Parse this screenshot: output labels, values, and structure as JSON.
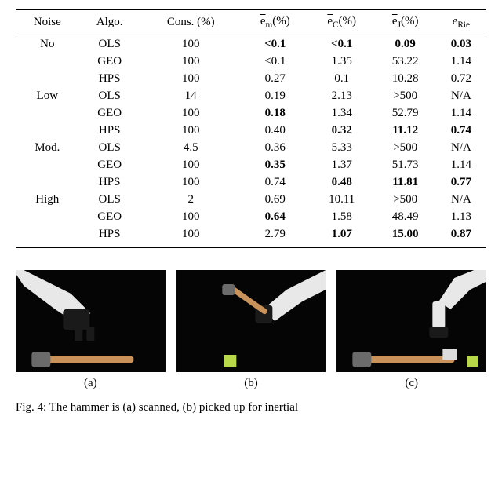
{
  "table": {
    "headers": {
      "noise": "Noise",
      "algo": "Algo.",
      "cons": "Cons. (%)",
      "em_bar": "e",
      "em_sub": "m",
      "em_tail": "(%)",
      "ec_bar": "e",
      "ec_sub": "C",
      "ec_tail": "(%)",
      "ej_bar": "e",
      "ej_sub": "J",
      "ej_tail": "(%)",
      "er_main": "e",
      "er_sub": "Rie"
    },
    "groups": [
      {
        "noise": "No",
        "rows": [
          {
            "algo": "OLS",
            "cons": "100",
            "em": "<0.1",
            "em_b": true,
            "ec": "<0.1",
            "ec_b": true,
            "ej": "0.09",
            "ej_b": true,
            "er": "0.03",
            "er_b": true
          },
          {
            "algo": "GEO",
            "cons": "100",
            "em": "<0.1",
            "em_b": false,
            "ec": "1.35",
            "ec_b": false,
            "ej": "53.22",
            "ej_b": false,
            "er": "1.14",
            "er_b": false
          },
          {
            "algo": "HPS",
            "cons": "100",
            "em": "0.27",
            "em_b": false,
            "ec": "0.1",
            "ec_b": false,
            "ej": "10.28",
            "ej_b": false,
            "er": "0.72",
            "er_b": false
          }
        ]
      },
      {
        "noise": "Low",
        "rows": [
          {
            "algo": "OLS",
            "cons": "14",
            "em": "0.19",
            "em_b": false,
            "ec": "2.13",
            "ec_b": false,
            "ej": ">500",
            "ej_b": false,
            "er": "N/A",
            "er_b": false
          },
          {
            "algo": "GEO",
            "cons": "100",
            "em": "0.18",
            "em_b": true,
            "ec": "1.34",
            "ec_b": false,
            "ej": "52.79",
            "ej_b": false,
            "er": "1.14",
            "er_b": false
          },
          {
            "algo": "HPS",
            "cons": "100",
            "em": "0.40",
            "em_b": false,
            "ec": "0.32",
            "ec_b": true,
            "ej": "11.12",
            "ej_b": true,
            "er": "0.74",
            "er_b": true
          }
        ]
      },
      {
        "noise": "Mod.",
        "rows": [
          {
            "algo": "OLS",
            "cons": "4.5",
            "em": "0.36",
            "em_b": false,
            "ec": "5.33",
            "ec_b": false,
            "ej": ">500",
            "ej_b": false,
            "er": "N/A",
            "er_b": false
          },
          {
            "algo": "GEO",
            "cons": "100",
            "em": "0.35",
            "em_b": true,
            "ec": "1.37",
            "ec_b": false,
            "ej": "51.73",
            "ej_b": false,
            "er": "1.14",
            "er_b": false
          },
          {
            "algo": "HPS",
            "cons": "100",
            "em": "0.74",
            "em_b": false,
            "ec": "0.48",
            "ec_b": true,
            "ej": "11.81",
            "ej_b": true,
            "er": "0.77",
            "er_b": true
          }
        ]
      },
      {
        "noise": "High",
        "rows": [
          {
            "algo": "OLS",
            "cons": "2",
            "em": "0.69",
            "em_b": false,
            "ec": "10.11",
            "ec_b": false,
            "ej": ">500",
            "ej_b": false,
            "er": "N/A",
            "er_b": false
          },
          {
            "algo": "GEO",
            "cons": "100",
            "em": "0.64",
            "em_b": true,
            "ec": "1.58",
            "ec_b": false,
            "ej": "48.49",
            "ej_b": false,
            "er": "1.13",
            "er_b": false
          },
          {
            "algo": "HPS",
            "cons": "100",
            "em": "2.79",
            "em_b": false,
            "ec": "1.07",
            "ec_b": true,
            "ej": "15.00",
            "ej_b": true,
            "er": "0.87",
            "er_b": true
          }
        ]
      }
    ]
  },
  "panels": {
    "a": {
      "label": "(a)"
    },
    "b": {
      "label": "(b)"
    },
    "c": {
      "label": "(c)"
    }
  },
  "figcap": {
    "pre": "Fig. 4: The hammer is (a) scanned, (b) picked up for inertial"
  },
  "colors": {
    "bg": "#ffffff",
    "rule": "#000000",
    "panel_bg": "#0a0a0a",
    "robot": "#e8e8e8",
    "robot_dark": "#1a1a1a",
    "wood": "#c8925a",
    "hammer_head": "#6b6b6b",
    "cube": "#b8d84a"
  }
}
